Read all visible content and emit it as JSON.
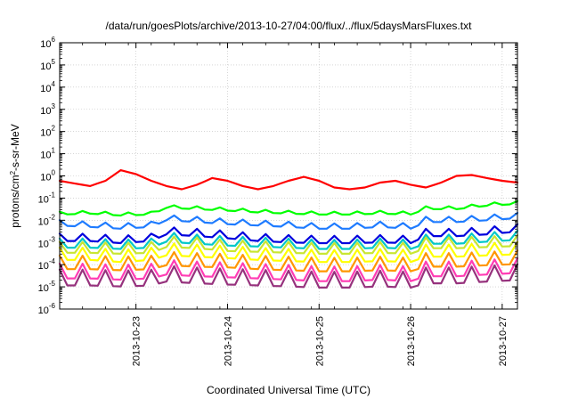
{
  "chart_data": {
    "type": "line",
    "title": "/data/run/goesPlots/archive/2013-10-27/04:00/flux/../flux/5daysMarsFluxes.txt",
    "xlabel": "Coordinated Universal Time (UTC)",
    "ylabel": {
      "base": "protons/cm",
      "sup": "2",
      "rest": "-s-sr-MeV"
    },
    "yscale": "log",
    "ylim": [
      1e-06,
      1000000.0
    ],
    "y_ticks": [
      {
        "base": "10",
        "exp": "-6",
        "value": 1e-06
      },
      {
        "base": "10",
        "exp": "-5",
        "value": 1e-05
      },
      {
        "base": "10",
        "exp": "-4",
        "value": 0.0001
      },
      {
        "base": "10",
        "exp": "-3",
        "value": 0.001
      },
      {
        "base": "10",
        "exp": "-2",
        "value": 0.01
      },
      {
        "base": "10",
        "exp": "-1",
        "value": 0.1
      },
      {
        "base": "10",
        "exp": "0",
        "value": 1
      },
      {
        "base": "10",
        "exp": "1",
        "value": 10
      },
      {
        "base": "10",
        "exp": "2",
        "value": 100
      },
      {
        "base": "10",
        "exp": "3",
        "value": 1000
      },
      {
        "base": "10",
        "exp": "4",
        "value": 10000
      },
      {
        "base": "10",
        "exp": "5",
        "value": 100000
      },
      {
        "base": "10",
        "exp": "6",
        "value": 1000000
      }
    ],
    "xlim": [
      "2013-10-22 04:00",
      "2013-10-27 04:00"
    ],
    "x_ticks": [
      {
        "label": "2013-10-23",
        "value": "2013-10-23 00:00"
      },
      {
        "label": "2013-10-24",
        "value": "2013-10-24 00:00"
      },
      {
        "label": "2013-10-25",
        "value": "2013-10-25 00:00"
      },
      {
        "label": "2013-10-26",
        "value": "2013-10-26 00:00"
      },
      {
        "label": "2013-10-27",
        "value": "2013-10-27 00:00"
      }
    ],
    "grid": true,
    "legend": "none",
    "series": [
      {
        "color": "#ff0000",
        "x": [
          "2013-10-22 04:00",
          "2013-10-22 08:00",
          "2013-10-22 12:00",
          "2013-10-22 16:00",
          "2013-10-22 20:00",
          "2013-10-23 00:00",
          "2013-10-23 04:00",
          "2013-10-23 08:00",
          "2013-10-23 12:00",
          "2013-10-23 16:00",
          "2013-10-23 20:00",
          "2013-10-24 00:00",
          "2013-10-24 04:00",
          "2013-10-24 08:00",
          "2013-10-24 12:00",
          "2013-10-24 16:00",
          "2013-10-24 20:00",
          "2013-10-25 00:00",
          "2013-10-25 04:00",
          "2013-10-25 08:00",
          "2013-10-25 12:00",
          "2013-10-25 16:00",
          "2013-10-25 20:00",
          "2013-10-26 00:00",
          "2013-10-26 04:00",
          "2013-10-26 08:00",
          "2013-10-26 12:00",
          "2013-10-26 16:00",
          "2013-10-26 20:00",
          "2013-10-27 00:00",
          "2013-10-27 04:00"
        ],
        "values": [
          0.6,
          0.45,
          0.35,
          0.6,
          1.8,
          1.2,
          0.6,
          0.35,
          0.25,
          0.4,
          0.8,
          0.6,
          0.35,
          0.25,
          0.35,
          0.6,
          0.9,
          0.6,
          0.3,
          0.25,
          0.3,
          0.5,
          0.6,
          0.4,
          0.3,
          0.5,
          1.0,
          1.1,
          0.8,
          0.6,
          0.5
        ]
      },
      {
        "color": "#00ff00",
        "x": [
          "2013-10-22 04:00",
          "2013-10-22 12:00",
          "2013-10-22 20:00",
          "2013-10-23 04:00",
          "2013-10-23 08:00",
          "2013-10-23 16:00",
          "2013-10-24 00:00",
          "2013-10-24 08:00",
          "2013-10-24 16:00",
          "2013-10-25 00:00",
          "2013-10-25 08:00",
          "2013-10-25 16:00",
          "2013-10-26 00:00",
          "2013-10-26 04:00",
          "2013-10-26 12:00",
          "2013-10-26 20:00",
          "2013-10-27 04:00"
        ],
        "values": [
          0.02,
          0.022,
          0.018,
          0.02,
          0.04,
          0.035,
          0.03,
          0.025,
          0.022,
          0.02,
          0.02,
          0.022,
          0.02,
          0.035,
          0.035,
          0.05,
          0.06
        ]
      },
      {
        "color": "#1e7bff",
        "x": [
          "2013-10-22 04:00",
          "2013-10-22 12:00",
          "2013-10-22 20:00",
          "2013-10-23 04:00",
          "2013-10-23 08:00",
          "2013-10-23 16:00",
          "2013-10-24 00:00",
          "2013-10-24 08:00",
          "2013-10-24 16:00",
          "2013-10-25 00:00",
          "2013-10-25 08:00",
          "2013-10-25 16:00",
          "2013-10-26 00:00",
          "2013-10-26 04:00",
          "2013-10-26 12:00",
          "2013-10-26 20:00",
          "2013-10-27 04:00"
        ],
        "values": [
          0.007,
          0.006,
          0.005,
          0.006,
          0.012,
          0.01,
          0.008,
          0.007,
          0.006,
          0.005,
          0.005,
          0.006,
          0.005,
          0.01,
          0.01,
          0.012,
          0.015
        ]
      },
      {
        "color": "#0000dd",
        "x": [
          "2013-10-22 04:00",
          "2013-10-22 12:00",
          "2013-10-22 20:00",
          "2013-10-23 04:00",
          "2013-10-23 08:00",
          "2013-10-23 16:00",
          "2013-10-24 00:00",
          "2013-10-24 08:00",
          "2013-10-24 16:00",
          "2013-10-25 00:00",
          "2013-10-25 08:00",
          "2013-10-25 16:00",
          "2013-10-26 00:00",
          "2013-10-26 04:00",
          "2013-10-26 12:00",
          "2013-10-26 20:00",
          "2013-10-27 04:00"
        ],
        "values": [
          0.0015,
          0.0015,
          0.0012,
          0.0015,
          0.003,
          0.0025,
          0.002,
          0.0015,
          0.0013,
          0.0012,
          0.0012,
          0.0013,
          0.0012,
          0.0025,
          0.0025,
          0.003,
          0.004
        ]
      },
      {
        "color": "#00c8c8",
        "x": [
          "2013-10-22 04:00",
          "2013-10-22 12:00",
          "2013-10-22 20:00",
          "2013-10-23 04:00",
          "2013-10-23 08:00",
          "2013-10-23 16:00",
          "2013-10-24 00:00",
          "2013-10-24 08:00",
          "2013-10-24 16:00",
          "2013-10-25 00:00",
          "2013-10-25 08:00",
          "2013-10-25 16:00",
          "2013-10-26 00:00",
          "2013-10-26 04:00",
          "2013-10-26 12:00",
          "2013-10-26 20:00",
          "2013-10-27 04:00"
        ],
        "values": [
          0.0008,
          0.0008,
          0.0007,
          0.0008,
          0.0015,
          0.0012,
          0.001,
          0.0009,
          0.0008,
          0.0007,
          0.0007,
          0.0008,
          0.0007,
          0.0012,
          0.0012,
          0.0015,
          0.0018
        ]
      },
      {
        "color": "#c8e632",
        "x": [
          "2013-10-22 04:00",
          "2013-10-22 12:00",
          "2013-10-22 20:00",
          "2013-10-23 04:00",
          "2013-10-23 08:00",
          "2013-10-23 16:00",
          "2013-10-24 00:00",
          "2013-10-24 08:00",
          "2013-10-24 16:00",
          "2013-10-25 00:00",
          "2013-10-25 08:00",
          "2013-10-25 16:00",
          "2013-10-26 00:00",
          "2013-10-26 04:00",
          "2013-10-26 12:00",
          "2013-10-26 20:00",
          "2013-10-27 04:00"
        ],
        "values": [
          0.0005,
          0.0005,
          0.00045,
          0.0005,
          0.0009,
          0.0008,
          0.0006,
          0.00055,
          0.0005,
          0.00045,
          0.00045,
          0.0005,
          0.00045,
          0.0008,
          0.0008,
          0.0009,
          0.001
        ]
      },
      {
        "color": "#ffff00",
        "x": [
          "2013-10-22 04:00",
          "2013-10-22 12:00",
          "2013-10-22 20:00",
          "2013-10-23 04:00",
          "2013-10-23 08:00",
          "2013-10-23 16:00",
          "2013-10-24 00:00",
          "2013-10-24 08:00",
          "2013-10-24 16:00",
          "2013-10-25 00:00",
          "2013-10-25 08:00",
          "2013-10-25 16:00",
          "2013-10-26 00:00",
          "2013-10-26 04:00",
          "2013-10-26 12:00",
          "2013-10-26 20:00",
          "2013-10-27 04:00"
        ],
        "values": [
          0.00025,
          0.00025,
          0.0002,
          0.00025,
          0.0004,
          0.00035,
          0.0003,
          0.00025,
          0.00022,
          0.0002,
          0.0002,
          0.00022,
          0.0002,
          0.00035,
          0.00035,
          0.0004,
          0.00045
        ]
      },
      {
        "color": "#ff9600",
        "x": [
          "2013-10-22 04:00",
          "2013-10-22 12:00",
          "2013-10-22 20:00",
          "2013-10-23 04:00",
          "2013-10-23 08:00",
          "2013-10-23 16:00",
          "2013-10-24 00:00",
          "2013-10-24 08:00",
          "2013-10-24 16:00",
          "2013-10-25 00:00",
          "2013-10-25 08:00",
          "2013-10-25 16:00",
          "2013-10-26 00:00",
          "2013-10-26 04:00",
          "2013-10-26 12:00",
          "2013-10-26 20:00",
          "2013-10-27 04:00"
        ],
        "values": [
          0.0001,
          0.0001,
          9e-05,
          0.0001,
          0.00015,
          0.00013,
          0.00012,
          0.0001,
          9e-05,
          8e-05,
          8e-05,
          9e-05,
          8e-05,
          0.00013,
          0.00013,
          0.00015,
          0.00017
        ]
      },
      {
        "color": "#ff3cb4",
        "x": [
          "2013-10-22 04:00",
          "2013-10-22 12:00",
          "2013-10-22 20:00",
          "2013-10-23 04:00",
          "2013-10-23 08:00",
          "2013-10-23 16:00",
          "2013-10-24 00:00",
          "2013-10-24 08:00",
          "2013-10-24 16:00",
          "2013-10-25 00:00",
          "2013-10-25 08:00",
          "2013-10-25 16:00",
          "2013-10-26 00:00",
          "2013-10-26 04:00",
          "2013-10-26 12:00",
          "2013-10-26 20:00",
          "2013-10-27 04:00"
        ],
        "values": [
          4e-05,
          4e-05,
          3.5e-05,
          4e-05,
          6e-05,
          5e-05,
          4.5e-05,
          4e-05,
          3.5e-05,
          3e-05,
          3e-05,
          3.5e-05,
          3e-05,
          5e-05,
          5e-05,
          6e-05,
          7e-05
        ]
      },
      {
        "color": "#96327d",
        "x": [
          "2013-10-22 04:00",
          "2013-10-22 12:00",
          "2013-10-22 20:00",
          "2013-10-23 04:00",
          "2013-10-23 08:00",
          "2013-10-23 16:00",
          "2013-10-24 00:00",
          "2013-10-24 08:00",
          "2013-10-24 16:00",
          "2013-10-25 00:00",
          "2013-10-25 08:00",
          "2013-10-25 16:00",
          "2013-10-26 00:00",
          "2013-10-26 04:00",
          "2013-10-26 12:00",
          "2013-10-26 20:00",
          "2013-10-27 04:00"
        ],
        "values": [
          2e-05,
          2e-05,
          1.8e-05,
          2e-05,
          3e-05,
          2.5e-05,
          2.2e-05,
          2e-05,
          1.8e-05,
          1.6e-05,
          1.6e-05,
          1.8e-05,
          1.6e-05,
          2.5e-05,
          2.5e-05,
          3e-05,
          3.5e-05
        ]
      }
    ]
  }
}
